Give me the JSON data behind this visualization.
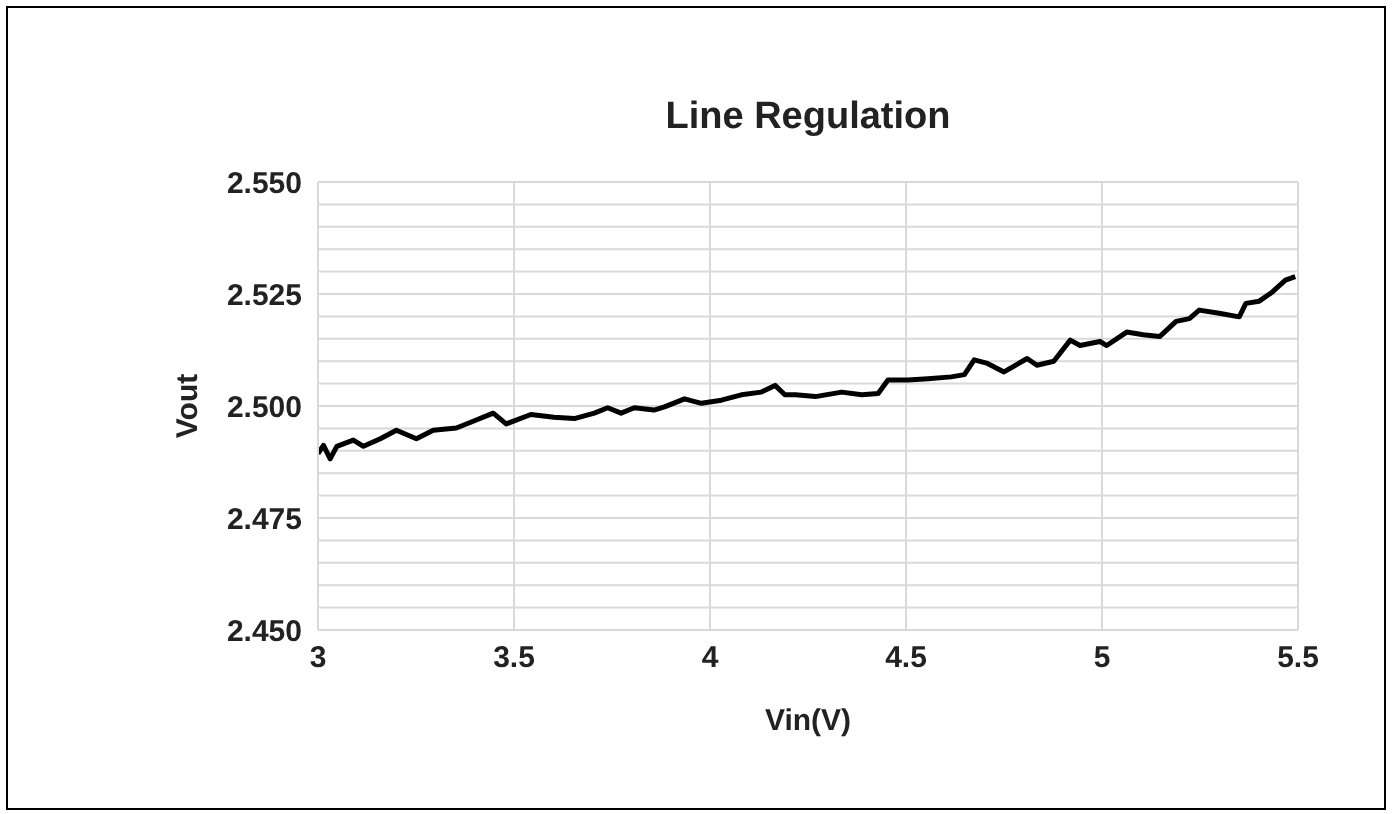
{
  "chart_data": {
    "type": "line",
    "title": "Line Regulation",
    "xlabel": "Vin(V)",
    "ylabel": "Vout",
    "series": [
      {
        "color": "#000000",
        "x": [
          3.0,
          3.014,
          3.031,
          3.048,
          3.09,
          3.116,
          3.159,
          3.2,
          3.251,
          3.294,
          3.353,
          3.396,
          3.447,
          3.48,
          3.543,
          3.602,
          3.654,
          3.705,
          3.739,
          3.773,
          3.807,
          3.857,
          3.884,
          3.935,
          3.978,
          4.029,
          4.08,
          4.131,
          4.166,
          4.191,
          4.218,
          4.269,
          4.336,
          4.387,
          4.429,
          4.454,
          4.505,
          4.556,
          4.615,
          4.649,
          4.674,
          4.708,
          4.75,
          4.809,
          4.834,
          4.877,
          4.919,
          4.944,
          4.995,
          5.012,
          5.063,
          5.105,
          5.147,
          5.189,
          5.223,
          5.248,
          5.299,
          5.35,
          5.367,
          5.401,
          5.434,
          5.468,
          5.493
        ],
        "values": [
          2.4894,
          2.4912,
          2.4882,
          2.491,
          2.4924,
          2.491,
          2.4927,
          2.4946,
          2.4927,
          2.4946,
          2.4951,
          2.4966,
          2.4984,
          2.496,
          2.4981,
          2.4975,
          2.4972,
          2.4984,
          2.4996,
          2.4984,
          2.4996,
          2.4991,
          2.4998,
          2.5016,
          2.5006,
          2.5013,
          2.5025,
          2.5031,
          2.5046,
          2.5025,
          2.5025,
          2.5021,
          2.5031,
          2.5025,
          2.5028,
          2.5058,
          2.5058,
          2.5061,
          2.5065,
          2.507,
          2.5103,
          2.5095,
          2.5076,
          2.5106,
          2.5091,
          2.51,
          2.5147,
          2.5135,
          2.5144,
          2.5135,
          2.5165,
          2.5159,
          2.5155,
          2.5189,
          2.5195,
          2.5214,
          2.5207,
          2.5199,
          2.5229,
          2.5234,
          2.5254,
          2.5281,
          2.5289
        ]
      }
    ],
    "xlim": [
      3,
      5.5
    ],
    "xticks": [
      3,
      3.5,
      4,
      4.5,
      5,
      5.5
    ],
    "ylim": [
      2.45,
      2.55
    ],
    "yticks": [
      {
        "value": 2.45,
        "label": "2.450"
      },
      {
        "value": 2.455,
        "label": null
      },
      {
        "value": 2.46,
        "label": null
      },
      {
        "value": 2.465,
        "label": null
      },
      {
        "value": 2.47,
        "label": null
      },
      {
        "value": 2.475,
        "label": "2.475"
      },
      {
        "value": 2.48,
        "label": null
      },
      {
        "value": 2.485,
        "label": null
      },
      {
        "value": 2.49,
        "label": null
      },
      {
        "value": 2.495,
        "label": null
      },
      {
        "value": 2.5,
        "label": "2.500"
      },
      {
        "value": 2.505,
        "label": null
      },
      {
        "value": 2.51,
        "label": null
      },
      {
        "value": 2.515,
        "label": null
      },
      {
        "value": 2.52,
        "label": null
      },
      {
        "value": 2.525,
        "label": "2.525"
      },
      {
        "value": 2.53,
        "label": null
      },
      {
        "value": 2.535,
        "label": null
      },
      {
        "value": 2.54,
        "label": null
      },
      {
        "value": 2.545,
        "label": null
      },
      {
        "value": 2.55,
        "label": "2.550"
      }
    ],
    "grid": true,
    "legend": false,
    "marker": "none",
    "line_style": "solid"
  }
}
